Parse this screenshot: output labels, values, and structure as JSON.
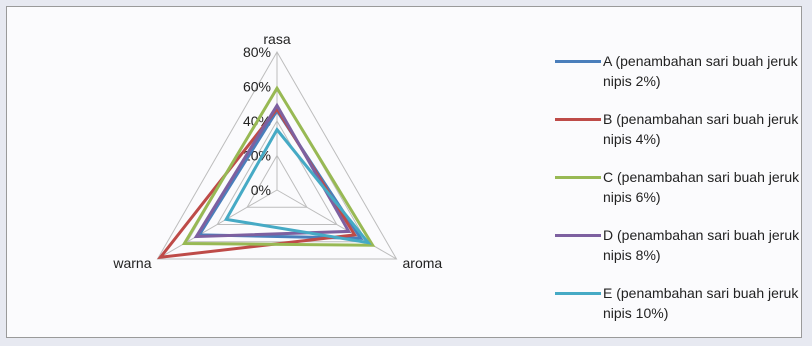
{
  "chart_data": {
    "type": "radar",
    "axes": [
      "rasa",
      "aroma",
      "warna"
    ],
    "ticks": [
      "0%",
      "20%",
      "40%",
      "60%",
      "80%"
    ],
    "range": [
      0,
      80
    ],
    "series": [
      {
        "name": "A (penambahan sari buah jeruk nipis 2%)",
        "values": [
          46,
          56,
          52
        ],
        "color": "#4a7ebb"
      },
      {
        "name": "B (penambahan sari buah jeruk nipis 4%)",
        "values": [
          47,
          52,
          78
        ],
        "color": "#be4b48"
      },
      {
        "name": "C (penambahan sari buah jeruk nipis 6%)",
        "values": [
          59,
          64,
          62
        ],
        "color": "#98b954"
      },
      {
        "name": "D (penambahan sari buah jeruk nipis 8%)",
        "values": [
          49,
          48,
          54
        ],
        "color": "#7d60a0"
      },
      {
        "name": "E (penambahan sari buah jeruk nipis 10%)",
        "values": [
          35,
          61,
          34
        ],
        "color": "#46aac5"
      }
    ]
  }
}
